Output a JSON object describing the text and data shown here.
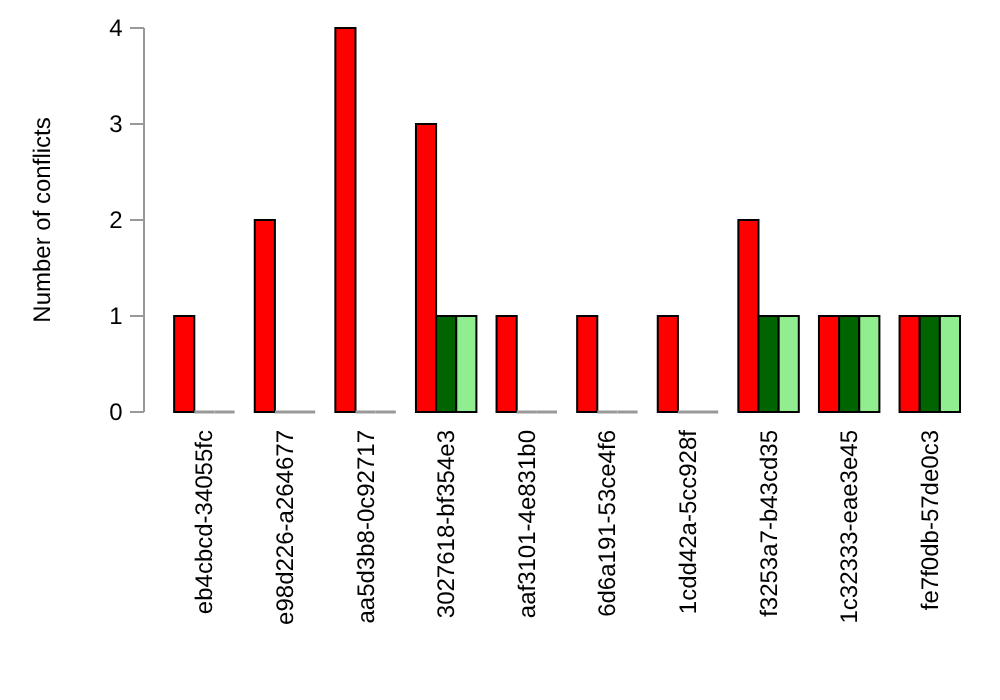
{
  "chart_data": {
    "type": "bar",
    "ylabel": "Number of conflicts",
    "categories": [
      "eb4cbcd-34055fc",
      "e98d226-a264677",
      "aa5d3b8-0c92717",
      "3027618-bf354e3",
      "aaf3101-4e831b0",
      "6d6a191-53ce4f6",
      "1cdd42a-5cc928f",
      "f3253a7-b43cd35",
      "1c32333-eae3e45",
      "fe7f0db-57de0c3"
    ],
    "series": [
      {
        "color": "#ff0000",
        "values": [
          1,
          2,
          4,
          3,
          1,
          1,
          1,
          2,
          1,
          1
        ]
      },
      {
        "color": "#006400",
        "values": [
          0,
          0,
          0,
          1,
          0,
          0,
          0,
          1,
          1,
          1
        ]
      },
      {
        "color": "#90ee90",
        "values": [
          0,
          0,
          0,
          1,
          0,
          0,
          0,
          1,
          1,
          1
        ]
      }
    ],
    "ylim": [
      0,
      4
    ],
    "yticks": [
      0,
      1,
      2,
      3,
      4
    ],
    "grid": false
  }
}
